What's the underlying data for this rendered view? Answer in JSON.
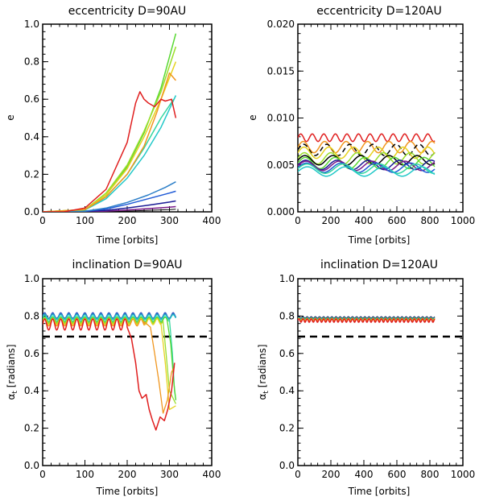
{
  "chart_data": [
    {
      "type": "line",
      "title": "eccentricity  D=90AU",
      "xlabel": "Time [orbits]",
      "ylabel": "e",
      "xlim": [
        0,
        400
      ],
      "ylim": [
        0.0,
        1.0
      ],
      "xticks": [
        0,
        100,
        200,
        300,
        400
      ],
      "xtick_labels": [
        "0",
        "100",
        "200",
        "300",
        "400"
      ],
      "yticks": [
        0.0,
        0.2,
        0.4,
        0.6,
        0.8,
        1.0
      ],
      "ytick_labels": [
        "0.0",
        "0.2",
        "0.4",
        "0.6",
        "0.8",
        "1.0"
      ],
      "series": [
        {
          "name": "black",
          "color": "#000000",
          "width": 1,
          "x": [
            0,
            100,
            200,
            250,
            300,
            315
          ],
          "y": [
            0.0,
            0.0,
            0.004,
            0.008,
            0.012,
            0.014
          ]
        },
        {
          "name": "purple",
          "color": "#7a1a8a",
          "width": 1.5,
          "x": [
            0,
            100,
            150,
            200,
            250,
            300,
            315
          ],
          "y": [
            0.0,
            0.001,
            0.004,
            0.01,
            0.017,
            0.025,
            0.028
          ]
        },
        {
          "name": "navy",
          "color": "#1c1c96",
          "width": 1.5,
          "x": [
            0,
            100,
            150,
            200,
            250,
            300,
            315
          ],
          "y": [
            0.0,
            0.002,
            0.008,
            0.02,
            0.035,
            0.052,
            0.058
          ]
        },
        {
          "name": "blue",
          "color": "#1f5ad6",
          "width": 1.5,
          "x": [
            0,
            100,
            150,
            200,
            250,
            300,
            315
          ],
          "y": [
            0.0,
            0.003,
            0.015,
            0.04,
            0.07,
            0.1,
            0.11
          ]
        },
        {
          "name": "steelblue",
          "color": "#2d7fc8",
          "width": 1.5,
          "x": [
            0,
            100,
            150,
            200,
            250,
            290,
            315
          ],
          "y": [
            0.0,
            0.004,
            0.02,
            0.05,
            0.09,
            0.13,
            0.16
          ]
        },
        {
          "name": "cyan",
          "color": "#22c8c8",
          "width": 1.5,
          "x": [
            0,
            100,
            150,
            200,
            240,
            280,
            315
          ],
          "y": [
            0.0,
            0.01,
            0.07,
            0.18,
            0.3,
            0.45,
            0.62
          ]
        },
        {
          "name": "aquagreen",
          "color": "#33d6a0",
          "width": 1.5,
          "x": [
            0,
            100,
            150,
            200,
            240,
            280,
            310
          ],
          "y": [
            0.0,
            0.01,
            0.08,
            0.2,
            0.34,
            0.5,
            0.6
          ]
        },
        {
          "name": "green",
          "color": "#58d832",
          "width": 1.5,
          "x": [
            0,
            100,
            150,
            200,
            240,
            280,
            315
          ],
          "y": [
            0.0,
            0.012,
            0.09,
            0.24,
            0.42,
            0.66,
            0.95
          ]
        },
        {
          "name": "lime",
          "color": "#9ade2a",
          "width": 1.5,
          "x": [
            0,
            100,
            150,
            200,
            240,
            280,
            315
          ],
          "y": [
            0.0,
            0.012,
            0.1,
            0.25,
            0.43,
            0.64,
            0.88
          ]
        },
        {
          "name": "yellow",
          "color": "#e6d21e",
          "width": 1.5,
          "x": [
            0,
            100,
            150,
            200,
            240,
            280,
            315
          ],
          "y": [
            0.0,
            0.012,
            0.09,
            0.23,
            0.4,
            0.6,
            0.8
          ]
        },
        {
          "name": "orange",
          "color": "#f0961e",
          "width": 1.5,
          "x": [
            0,
            100,
            150,
            200,
            240,
            270,
            290,
            300,
            315
          ],
          "y": [
            0.0,
            0.012,
            0.08,
            0.2,
            0.35,
            0.53,
            0.67,
            0.74,
            0.7
          ]
        },
        {
          "name": "red",
          "color": "#e01e1e",
          "width": 1.5,
          "x": [
            0,
            50,
            100,
            150,
            200,
            220,
            230,
            240,
            250,
            265,
            280,
            290,
            305,
            315
          ],
          "y": [
            0.0,
            0.0,
            0.02,
            0.12,
            0.37,
            0.58,
            0.64,
            0.6,
            0.58,
            0.56,
            0.6,
            0.59,
            0.6,
            0.5
          ]
        }
      ]
    },
    {
      "type": "line",
      "title": "eccentricity  D=120AU",
      "xlabel": "Time [orbits]",
      "ylabel": "e",
      "xlim": [
        0,
        1000
      ],
      "ylim": [
        0.0,
        0.02
      ],
      "xticks": [
        0,
        200,
        400,
        600,
        800,
        1000
      ],
      "xtick_labels": [
        "0",
        "200",
        "400",
        "600",
        "800",
        "1000"
      ],
      "yticks": [
        0.0,
        0.005,
        0.01,
        0.015,
        0.02
      ],
      "ytick_labels": [
        "0.000",
        "0.005",
        "0.010",
        "0.015",
        "0.020"
      ],
      "series": [
        {
          "name": "red",
          "color": "#e01e1e",
          "width": 1.5,
          "x_end": 830,
          "base": 0.0079,
          "amp": 0.0004,
          "period": 70
        },
        {
          "name": "orange",
          "color": "#f0961e",
          "width": 1.5,
          "x_end": 830,
          "base": 0.0069,
          "amp": 0.0006,
          "period": 130
        },
        {
          "name": "black-dashed",
          "color": "#000000",
          "width": 1.5,
          "dashed": true,
          "x_end": 830,
          "base": 0.0066,
          "amp": 0.0006,
          "period": 140
        },
        {
          "name": "yellow",
          "color": "#e6d21e",
          "width": 1.5,
          "x_end": 830,
          "base": 0.0063,
          "amp": 0.0006,
          "period": 150
        },
        {
          "name": "lime",
          "color": "#9ade2a",
          "width": 1.5,
          "x_end": 830,
          "base": 0.0057,
          "amp": 0.0006,
          "period": 160
        },
        {
          "name": "black",
          "color": "#000000",
          "width": 1.5,
          "x_end": 830,
          "base": 0.0055,
          "amp": 0.0005,
          "period": 170
        },
        {
          "name": "green",
          "color": "#58d832",
          "width": 1.5,
          "x_end": 830,
          "base": 0.0052,
          "amp": 0.0006,
          "period": 180
        },
        {
          "name": "navy",
          "color": "#1c1c96",
          "width": 1.5,
          "x_end": 830,
          "base": 0.005,
          "amp": 0.0005,
          "period": 190
        },
        {
          "name": "purple",
          "color": "#7a1a8a",
          "width": 1.5,
          "x_end": 830,
          "base": 0.0049,
          "amp": 0.0005,
          "period": 200
        },
        {
          "name": "blue",
          "color": "#1f5ad6",
          "width": 1.5,
          "x_end": 830,
          "base": 0.0047,
          "amp": 0.0005,
          "period": 210
        },
        {
          "name": "aquagreen",
          "color": "#33d6a0",
          "width": 1.5,
          "x_end": 830,
          "base": 0.0046,
          "amp": 0.0005,
          "period": 220
        },
        {
          "name": "cyan",
          "color": "#22c8c8",
          "width": 1.5,
          "x_end": 830,
          "base": 0.0043,
          "amp": 0.0005,
          "period": 230
        }
      ]
    },
    {
      "type": "line",
      "title": "inclination  D=90AU",
      "xlabel": "Time [orbits]",
      "ylabel": "α_t [radians]",
      "ylabel_main": "α",
      "ylabel_sub": "t",
      "ylabel_rest": " [radians]",
      "xlim": [
        0,
        400
      ],
      "ylim": [
        0.0,
        1.0
      ],
      "xticks": [
        0,
        100,
        200,
        300,
        400
      ],
      "xtick_labels": [
        "0",
        "100",
        "200",
        "300",
        "400"
      ],
      "yticks": [
        0.0,
        0.2,
        0.4,
        0.6,
        0.8,
        1.0
      ],
      "ytick_labels": [
        "0.0",
        "0.2",
        "0.4",
        "0.6",
        "0.8",
        "1.0"
      ],
      "threshold": 0.69,
      "series": [
        {
          "name": "black",
          "color": "#000000",
          "width": 1.3,
          "x_end": 315,
          "base": 0.8,
          "amp": 0.012,
          "period": 19
        },
        {
          "name": "purple",
          "color": "#7a1a8a",
          "width": 1.3,
          "x_end": 315,
          "base": 0.8,
          "amp": 0.014,
          "period": 19
        },
        {
          "name": "navy",
          "color": "#1c1c96",
          "width": 1.3,
          "x_end": 315,
          "base": 0.8,
          "amp": 0.018,
          "period": 19
        },
        {
          "name": "blue",
          "color": "#1f5ad6",
          "width": 1.3,
          "x_end": 315,
          "base": 0.8,
          "amp": 0.016,
          "period": 19
        },
        {
          "name": "steelblue",
          "color": "#2d7fc8",
          "width": 1.3,
          "x_end": 315,
          "base": 0.8,
          "amp": 0.014,
          "period": 19
        },
        {
          "name": "cyan",
          "color": "#22c8c8",
          "width": 1.3,
          "x_end": 315,
          "base": 0.795,
          "amp": 0.012,
          "period": 19
        },
        {
          "name": "aquagreen",
          "color": "#33d6a0",
          "width": 1.3,
          "x_end": 300,
          "base": 0.785,
          "amp": 0.012,
          "period": 19,
          "drop": [
            [
              300,
              0.78
            ],
            [
              307,
              0.6
            ],
            [
              312,
              0.4
            ],
            [
              315,
              0.35
            ]
          ]
        },
        {
          "name": "green",
          "color": "#58d832",
          "width": 1.3,
          "x_end": 295,
          "base": 0.78,
          "amp": 0.014,
          "period": 19,
          "drop": [
            [
              295,
              0.77
            ],
            [
              303,
              0.65
            ],
            [
              310,
              0.45
            ],
            [
              315,
              0.35
            ]
          ]
        },
        {
          "name": "lime",
          "color": "#9ade2a",
          "width": 1.3,
          "x_end": 285,
          "base": 0.775,
          "amp": 0.015,
          "period": 19,
          "drop": [
            [
              285,
              0.77
            ],
            [
              292,
              0.6
            ],
            [
              300,
              0.4
            ],
            [
              315,
              0.33
            ]
          ]
        },
        {
          "name": "yellow",
          "color": "#e6d21e",
          "width": 1.3,
          "x_end": 280,
          "base": 0.77,
          "amp": 0.016,
          "period": 19,
          "drop": [
            [
              280,
              0.76
            ],
            [
              290,
              0.55
            ],
            [
              300,
              0.3
            ],
            [
              315,
              0.32
            ]
          ]
        },
        {
          "name": "orange",
          "color": "#f0961e",
          "width": 1.3,
          "x_end": 240,
          "base": 0.765,
          "amp": 0.018,
          "period": 19,
          "drop": [
            [
              240,
              0.77
            ],
            [
              255,
              0.74
            ],
            [
              265,
              0.6
            ],
            [
              275,
              0.45
            ],
            [
              285,
              0.28
            ],
            [
              295,
              0.35
            ],
            [
              305,
              0.5
            ],
            [
              312,
              0.53
            ]
          ]
        },
        {
          "name": "red",
          "color": "#e01e1e",
          "width": 1.5,
          "x_end": 200,
          "base": 0.755,
          "amp": 0.03,
          "period": 19,
          "drop": [
            [
              200,
              0.74
            ],
            [
              210,
              0.68
            ],
            [
              220,
              0.55
            ],
            [
              228,
              0.4
            ],
            [
              235,
              0.36
            ],
            [
              245,
              0.38
            ],
            [
              252,
              0.3
            ],
            [
              260,
              0.24
            ],
            [
              268,
              0.19
            ],
            [
              278,
              0.26
            ],
            [
              288,
              0.24
            ],
            [
              296,
              0.3
            ],
            [
              305,
              0.4
            ],
            [
              312,
              0.55
            ]
          ]
        }
      ]
    },
    {
      "type": "line",
      "title": "inclination  D=120AU",
      "xlabel": "Time [orbits]",
      "ylabel": "α_t [radians]",
      "ylabel_main": "α",
      "ylabel_sub": "t",
      "ylabel_rest": " [radians]",
      "xlim": [
        0,
        1000
      ],
      "ylim": [
        0.0,
        1.0
      ],
      "xticks": [
        0,
        200,
        400,
        600,
        800,
        1000
      ],
      "xtick_labels": [
        "0",
        "200",
        "400",
        "600",
        "800",
        "1000"
      ],
      "yticks": [
        0.0,
        0.2,
        0.4,
        0.6,
        0.8,
        1.0
      ],
      "ytick_labels": [
        "0.0",
        "0.2",
        "0.4",
        "0.6",
        "0.8",
        "1.0"
      ],
      "threshold": 0.69,
      "series": [
        {
          "name": "black",
          "color": "#000000",
          "width": 1.3,
          "x_end": 830,
          "base": 0.792,
          "amp": 0.004,
          "period": 25
        },
        {
          "name": "navy",
          "color": "#1c1c96",
          "width": 1.3,
          "x_end": 830,
          "base": 0.79,
          "amp": 0.004,
          "period": 25
        },
        {
          "name": "blue",
          "color": "#1f5ad6",
          "width": 1.3,
          "x_end": 830,
          "base": 0.789,
          "amp": 0.004,
          "period": 25
        },
        {
          "name": "cyan",
          "color": "#22c8c8",
          "width": 1.3,
          "x_end": 830,
          "base": 0.787,
          "amp": 0.004,
          "period": 25
        },
        {
          "name": "green",
          "color": "#58d832",
          "width": 1.3,
          "x_end": 830,
          "base": 0.785,
          "amp": 0.005,
          "period": 25
        },
        {
          "name": "yellow",
          "color": "#e6d21e",
          "width": 1.3,
          "x_end": 830,
          "base": 0.782,
          "amp": 0.006,
          "period": 25
        },
        {
          "name": "orange",
          "color": "#f0961e",
          "width": 1.3,
          "x_end": 830,
          "base": 0.78,
          "amp": 0.007,
          "period": 25
        },
        {
          "name": "red",
          "color": "#e01e1e",
          "width": 1.5,
          "x_end": 830,
          "base": 0.776,
          "amp": 0.009,
          "period": 25
        }
      ]
    }
  ]
}
